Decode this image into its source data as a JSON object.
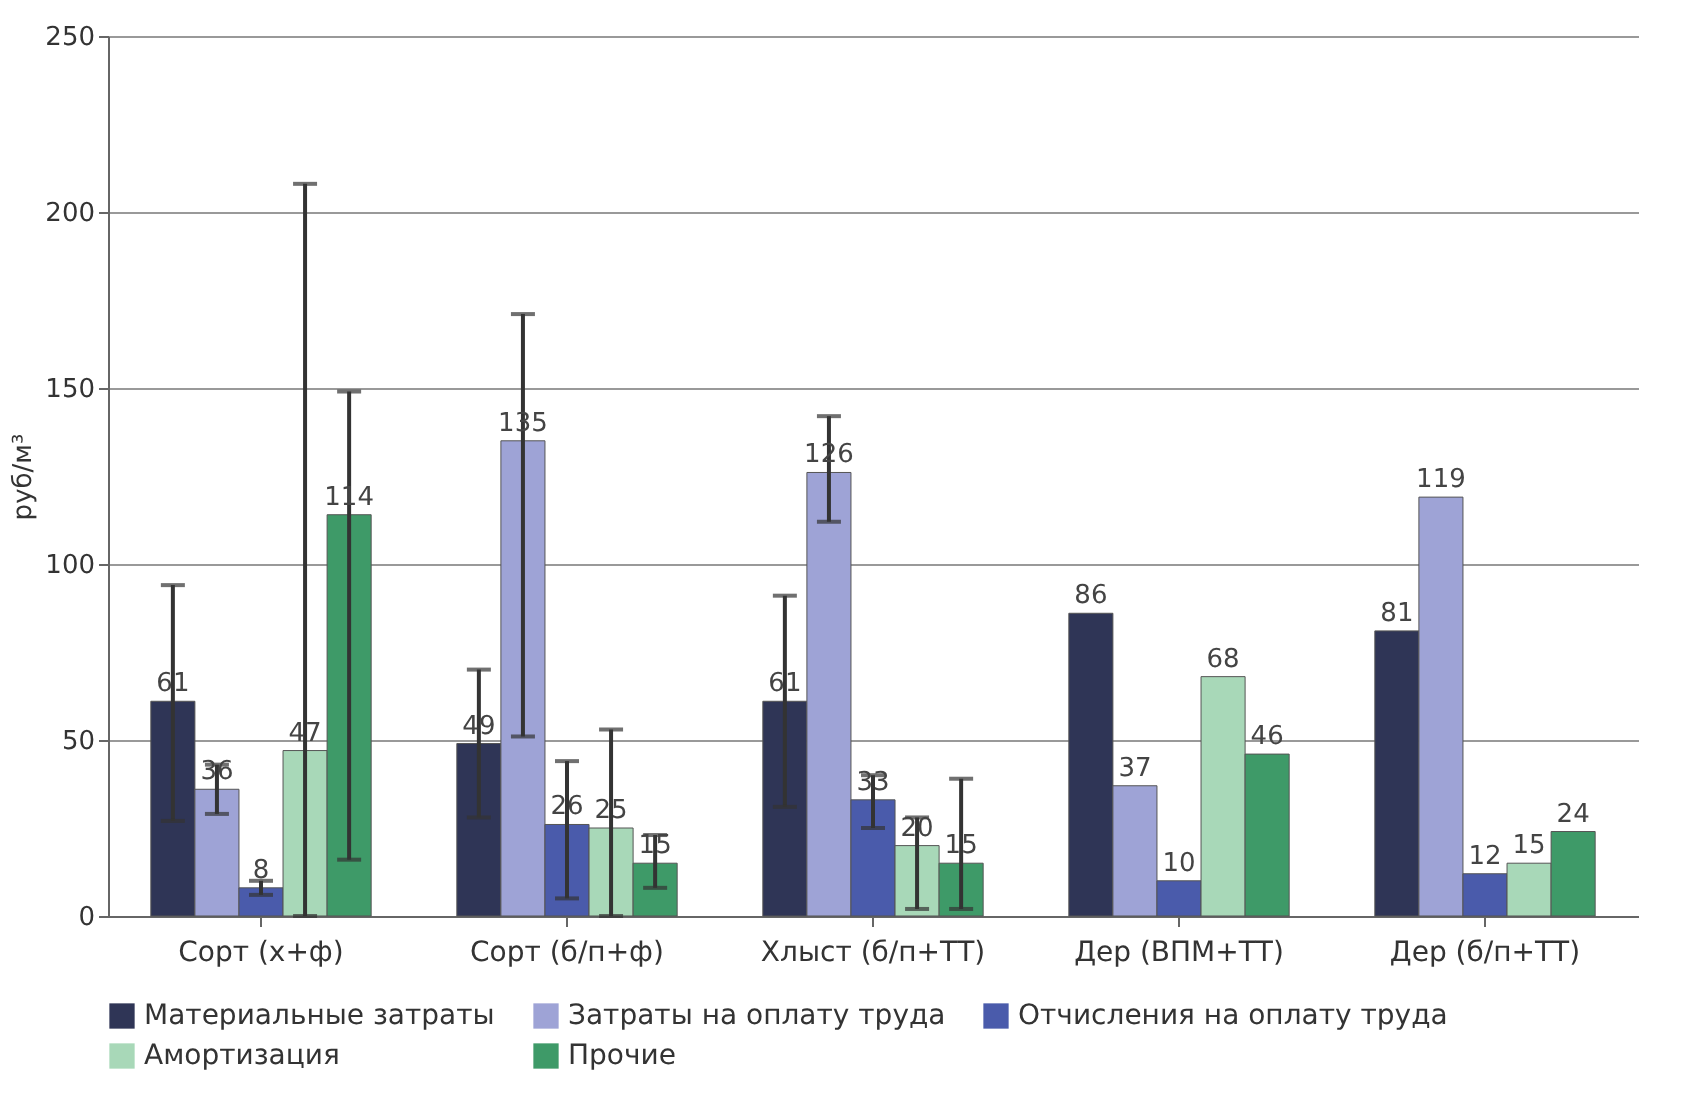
{
  "chart_data": {
    "type": "bar",
    "ylabel": "руб/м³",
    "categories": [
      "Сорт (х+ф)",
      "Сорт (б/п+ф)",
      "Хлыст (б/п+ТТ)",
      "Дер (ВПМ+ТТ)",
      "Дер (б/п+ТТ)"
    ],
    "ylim": [
      0,
      250
    ],
    "yticks": [
      0,
      50,
      100,
      150,
      200,
      250
    ],
    "grid": "y",
    "legend": "bottom",
    "data_labels": true,
    "series": [
      {
        "name": "Материальные затраты",
        "color": "#2f3556",
        "values": [
          61,
          49,
          61,
          86,
          81
        ],
        "errors": [
          [
            27,
            94
          ],
          [
            28,
            70
          ],
          [
            31,
            91
          ],
          null,
          null
        ]
      },
      {
        "name": "Затраты на оплату труда",
        "color": "#9ea3d6",
        "values": [
          36,
          135,
          126,
          37,
          119
        ],
        "errors": [
          [
            29,
            43
          ],
          [
            51,
            171
          ],
          [
            112,
            142
          ],
          null,
          null
        ]
      },
      {
        "name": "Отчисления на оплату труда",
        "color": "#4a5bab",
        "values": [
          8,
          26,
          33,
          10,
          12
        ],
        "errors": [
          [
            6,
            10
          ],
          [
            5,
            44
          ],
          [
            25,
            40
          ],
          null,
          null
        ]
      },
      {
        "name": "Амортизация",
        "color": "#a8d8b8",
        "values": [
          47,
          25,
          20,
          68,
          15
        ],
        "errors": [
          [
            0,
            208
          ],
          [
            0,
            53
          ],
          [
            2,
            28
          ],
          null,
          null
        ]
      },
      {
        "name": "Прочие",
        "color": "#3e9a68",
        "values": [
          114,
          15,
          15,
          46,
          24
        ],
        "errors": [
          [
            16,
            149
          ],
          [
            8,
            23
          ],
          [
            2,
            39
          ],
          null,
          null
        ]
      }
    ]
  }
}
